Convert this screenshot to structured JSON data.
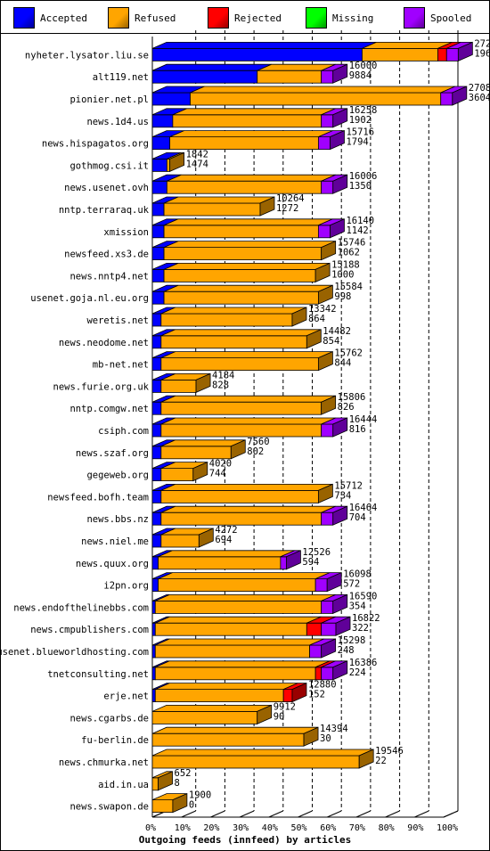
{
  "legend": [
    {
      "label": "Accepted",
      "color": "#0000ff"
    },
    {
      "label": "Refused",
      "color": "#ffa500"
    },
    {
      "label": "Rejected",
      "color": "#ff0000"
    },
    {
      "label": "Missing",
      "color": "#00ff00"
    },
    {
      "label": "Spooled",
      "color": "#a000ff"
    }
  ],
  "chart_data": {
    "type": "bar",
    "orientation": "horizontal-stacked",
    "xlabel": "Outgoing feeds (innfeed) by articles",
    "xticks": [
      "0%",
      "10%",
      "20%",
      "30%",
      "40%",
      "50%",
      "60%",
      "70%",
      "80%",
      "90%",
      "100%"
    ],
    "xlim": [
      0,
      100
    ],
    "grid": "vertical dashed",
    "legend_position": "top",
    "series_names": [
      "Accepted",
      "Refused",
      "Rejected",
      "Missing",
      "Spooled"
    ],
    "rows": [
      {
        "name": "nyheter.lysator.liu.se",
        "offered": "27292",
        "accepted_count": "19614",
        "segments": [
          72,
          26,
          3,
          0,
          4
        ]
      },
      {
        "name": "alt119.net",
        "offered": "16000",
        "accepted_count": "9884",
        "segments": [
          36,
          22,
          0,
          0,
          4
        ]
      },
      {
        "name": "pionier.net.pl",
        "offered": "27080",
        "accepted_count": "3604",
        "segments": [
          13,
          86,
          0,
          0,
          4
        ]
      },
      {
        "name": "news.1d4.us",
        "offered": "16258",
        "accepted_count": "1902",
        "segments": [
          7,
          51,
          0,
          0,
          4
        ]
      },
      {
        "name": "news.hispagatos.org",
        "offered": "15716",
        "accepted_count": "1794",
        "segments": [
          6,
          51,
          0,
          0,
          4
        ]
      },
      {
        "name": "gothmog.csi.it",
        "offered": "1842",
        "accepted_count": "1474",
        "segments": [
          5,
          1,
          0,
          0,
          0
        ]
      },
      {
        "name": "news.usenet.ovh",
        "offered": "16006",
        "accepted_count": "1350",
        "segments": [
          5,
          53,
          0,
          0,
          4
        ]
      },
      {
        "name": "nntp.terraraq.uk",
        "offered": "10264",
        "accepted_count": "1272",
        "segments": [
          4,
          33,
          0,
          0,
          0
        ]
      },
      {
        "name": "xmission",
        "offered": "16140",
        "accepted_count": "1142",
        "segments": [
          4,
          53,
          0,
          0,
          4
        ]
      },
      {
        "name": "newsfeed.xs3.de",
        "offered": "15746",
        "accepted_count": "1062",
        "segments": [
          4,
          54,
          0,
          0,
          0
        ]
      },
      {
        "name": "news.nntp4.net",
        "offered": "15188",
        "accepted_count": "1000",
        "segments": [
          4,
          52,
          0,
          0,
          0
        ]
      },
      {
        "name": "usenet.goja.nl.eu.org",
        "offered": "15584",
        "accepted_count": "998",
        "segments": [
          4,
          53,
          0,
          0,
          0
        ]
      },
      {
        "name": "weretis.net",
        "offered": "13342",
        "accepted_count": "864",
        "segments": [
          3,
          45,
          0,
          0,
          0
        ]
      },
      {
        "name": "news.neodome.net",
        "offered": "14482",
        "accepted_count": "854",
        "segments": [
          3,
          50,
          0,
          0,
          0
        ]
      },
      {
        "name": "mb-net.net",
        "offered": "15762",
        "accepted_count": "844",
        "segments": [
          3,
          54,
          0,
          0,
          0
        ]
      },
      {
        "name": "news.furie.org.uk",
        "offered": "4184",
        "accepted_count": "828",
        "segments": [
          3,
          12,
          0,
          0,
          0
        ]
      },
      {
        "name": "nntp.comgw.net",
        "offered": "15806",
        "accepted_count": "826",
        "segments": [
          3,
          55,
          0,
          0,
          0
        ]
      },
      {
        "name": "csiph.com",
        "offered": "16444",
        "accepted_count": "816",
        "segments": [
          3,
          55,
          0,
          0,
          4
        ]
      },
      {
        "name": "news.szaf.org",
        "offered": "7560",
        "accepted_count": "802",
        "segments": [
          3,
          24,
          0,
          0,
          0
        ]
      },
      {
        "name": "gegeweb.org",
        "offered": "4020",
        "accepted_count": "744",
        "segments": [
          3,
          11,
          0,
          0,
          0
        ]
      },
      {
        "name": "newsfeed.bofh.team",
        "offered": "15712",
        "accepted_count": "734",
        "segments": [
          3,
          54,
          0,
          0,
          0
        ]
      },
      {
        "name": "news.bbs.nz",
        "offered": "16464",
        "accepted_count": "704",
        "segments": [
          3,
          55,
          0,
          0,
          4
        ]
      },
      {
        "name": "news.niel.me",
        "offered": "4272",
        "accepted_count": "694",
        "segments": [
          3,
          13,
          0,
          0,
          0
        ]
      },
      {
        "name": "news.quux.org",
        "offered": "12526",
        "accepted_count": "594",
        "segments": [
          2,
          42,
          0,
          0,
          2
        ]
      },
      {
        "name": "i2pn.org",
        "offered": "16098",
        "accepted_count": "572",
        "segments": [
          2,
          54,
          0,
          0,
          4
        ]
      },
      {
        "name": "news.endofthelinebbs.com",
        "offered": "16590",
        "accepted_count": "354",
        "segments": [
          1,
          57,
          0,
          0,
          4
        ]
      },
      {
        "name": "news.cmpublishers.com",
        "offered": "16822",
        "accepted_count": "322",
        "segments": [
          1,
          52,
          5,
          0,
          5
        ]
      },
      {
        "name": "usenet.blueworldhosting.com",
        "offered": "15298",
        "accepted_count": "248",
        "segments": [
          1,
          53,
          0,
          0,
          4
        ]
      },
      {
        "name": "tnetconsulting.net",
        "offered": "16386",
        "accepted_count": "224",
        "segments": [
          1,
          55,
          2,
          0,
          4
        ]
      },
      {
        "name": "erje.net",
        "offered": "12880",
        "accepted_count": "152",
        "segments": [
          1,
          44,
          3,
          0,
          0
        ]
      },
      {
        "name": "news.cgarbs.de",
        "offered": "9912",
        "accepted_count": "90",
        "segments": [
          0,
          36,
          0,
          0,
          0
        ]
      },
      {
        "name": "fu-berlin.de",
        "offered": "14394",
        "accepted_count": "30",
        "segments": [
          0,
          52,
          0,
          0,
          0
        ]
      },
      {
        "name": "news.chmurka.net",
        "offered": "19546",
        "accepted_count": "22",
        "segments": [
          0,
          71,
          0,
          0,
          0
        ]
      },
      {
        "name": "aid.in.ua",
        "offered": "652",
        "accepted_count": "8",
        "segments": [
          0,
          2,
          0,
          0,
          0
        ]
      },
      {
        "name": "news.swapon.de",
        "offered": "1900",
        "accepted_count": "0",
        "segments": [
          0,
          7,
          0,
          0,
          0
        ]
      }
    ]
  }
}
